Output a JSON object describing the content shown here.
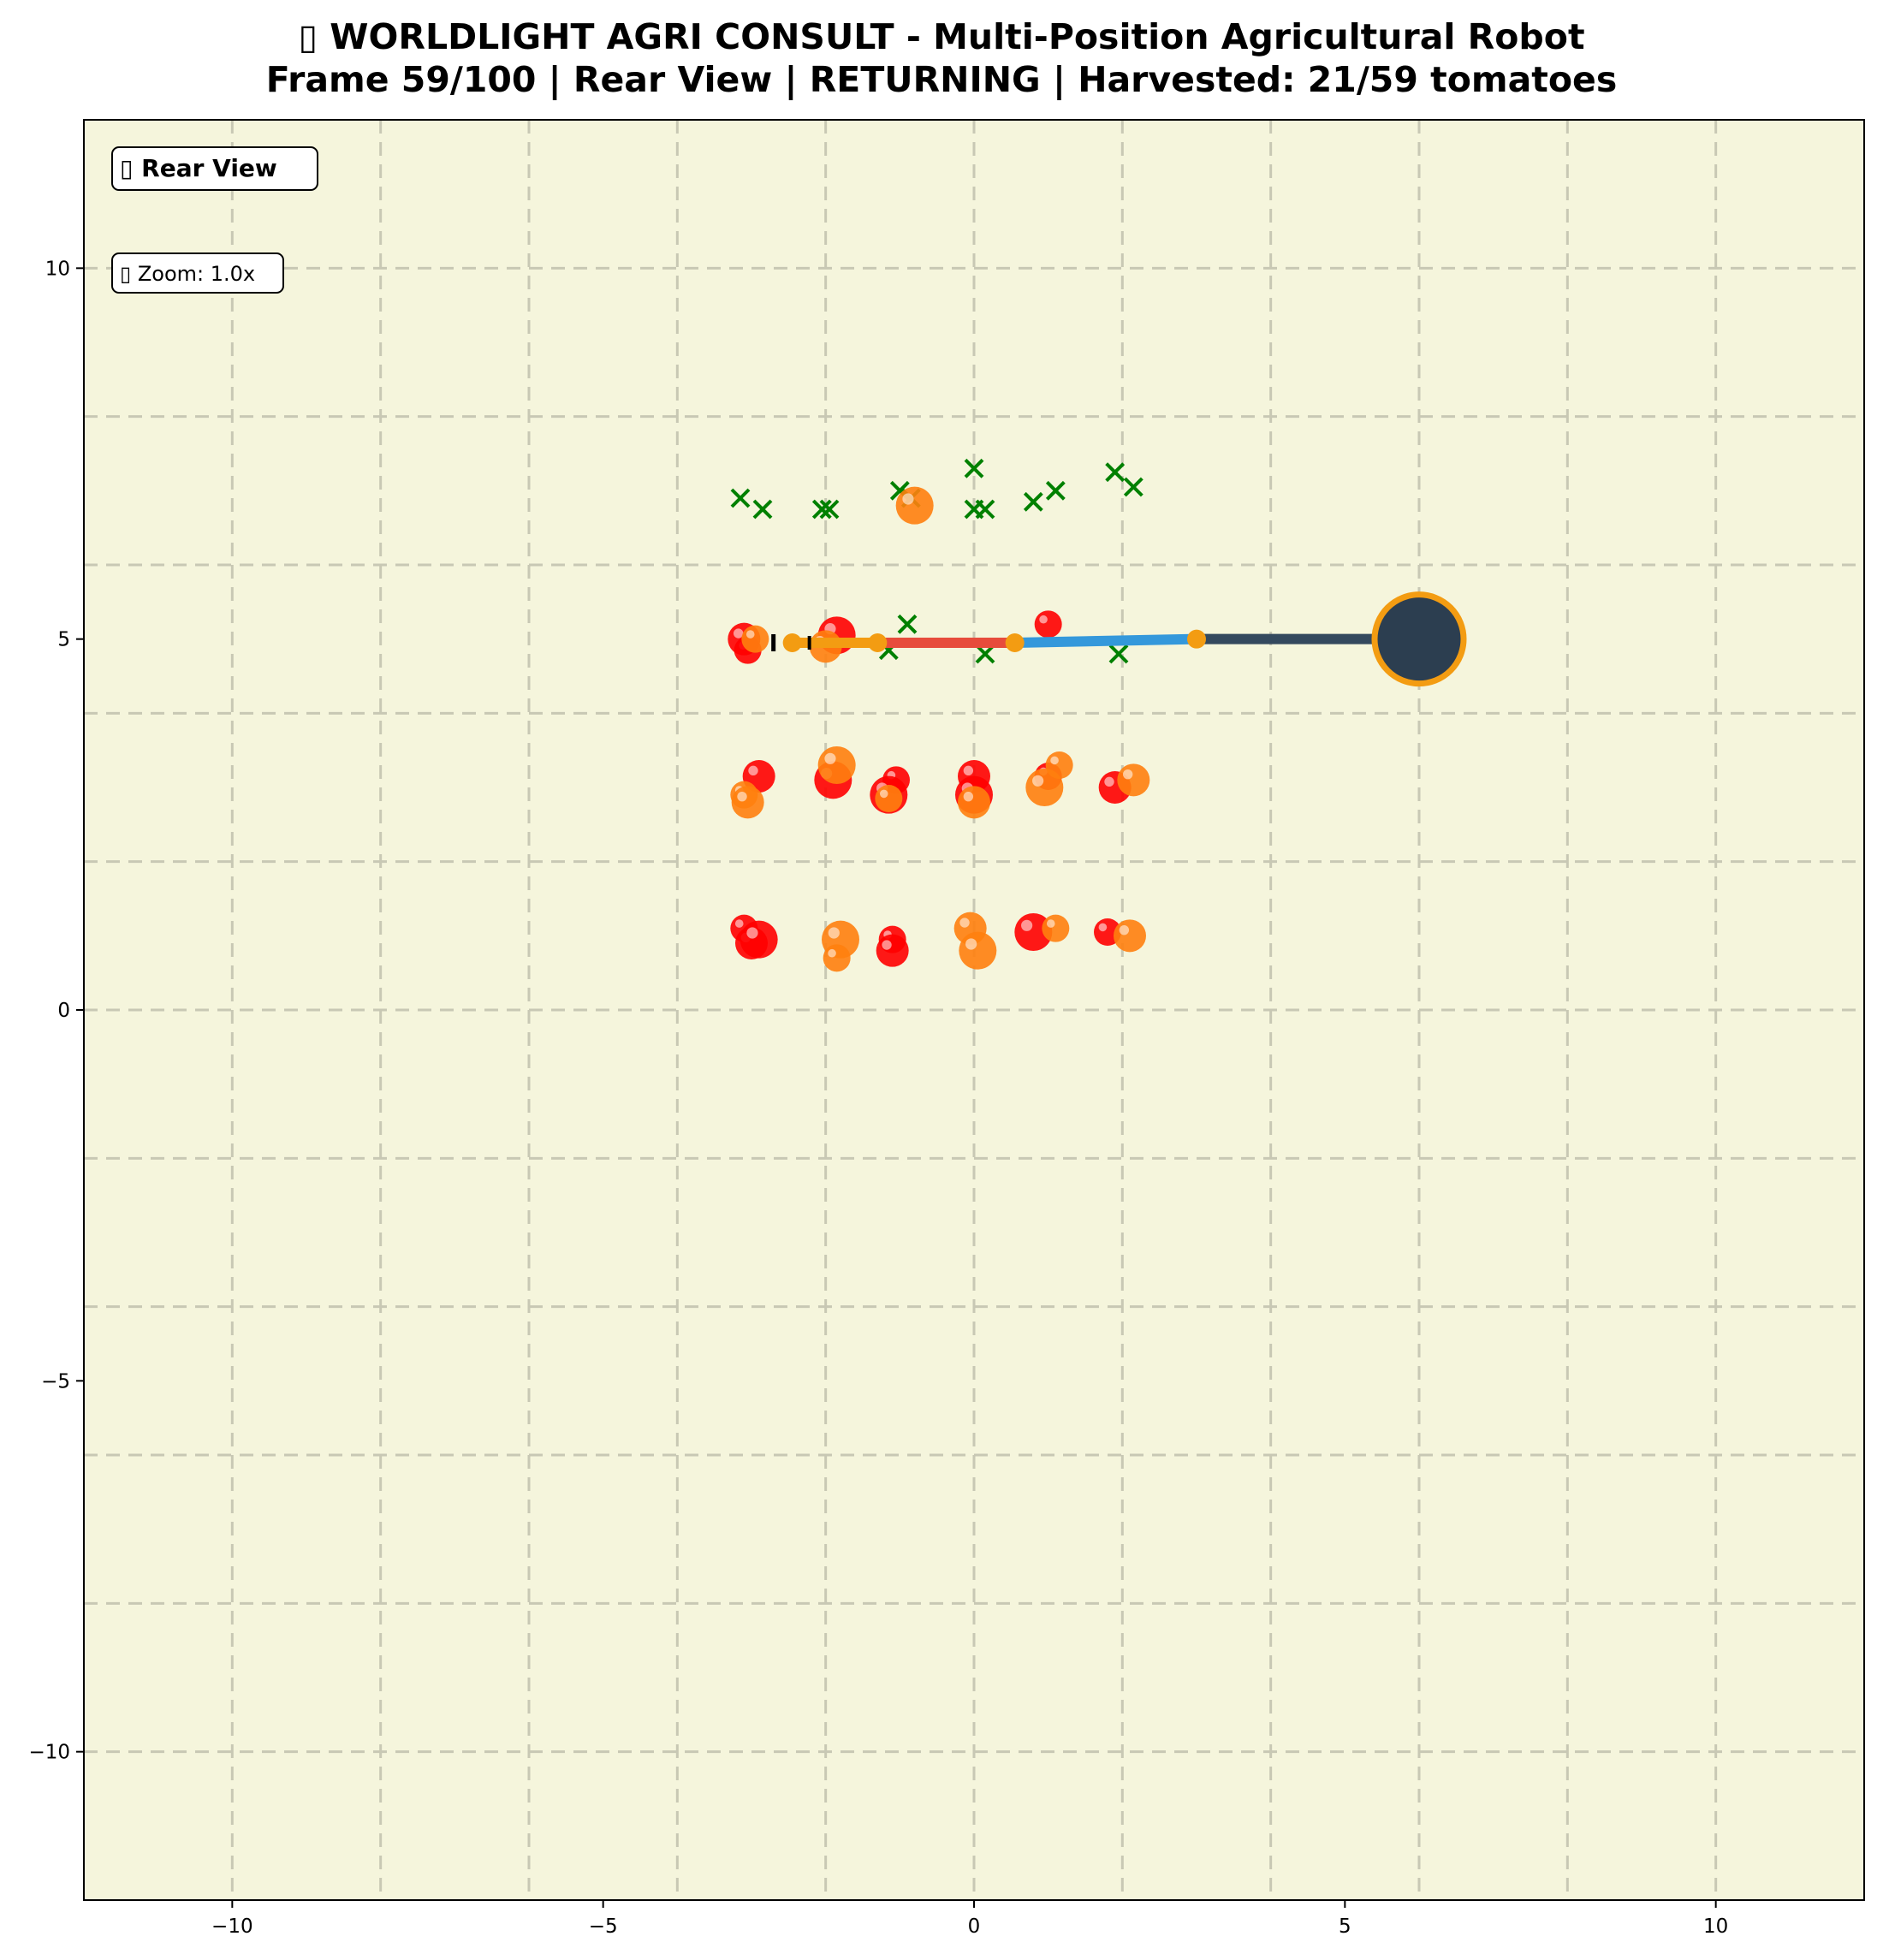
{
  "title": {
    "line1": "▯ WORLDLIGHT AGRI CONSULT - Multi-Position Agricultural Robot",
    "line2": "Frame 59/100 | Rear View | RETURNING | Harvested: 21/59 tomatoes"
  },
  "badges": {
    "view": "▯ Rear View",
    "zoom": "▯ Zoom: 1.0x"
  },
  "colors": {
    "background": "#f5f5dc",
    "grid": "#c8c8b4",
    "ripe": "#ff0000",
    "semi_ripe": "#ff7f0e",
    "harvested_marker": "#008000",
    "robot_body": "#2c3e50",
    "robot_ring": "#f39c12",
    "arm_segments": [
      "#f39c12",
      "#e74c3c",
      "#3498db",
      "#34495e"
    ]
  },
  "chart_data": {
    "type": "scatter",
    "xlim": [
      -12,
      12
    ],
    "ylim": [
      -12,
      12
    ],
    "xticks": [
      -10,
      -5,
      0,
      5,
      10
    ],
    "yticks": [
      -10,
      -5,
      0,
      5,
      10
    ],
    "xtick_labels": [
      "−10",
      "−5",
      "0",
      "5",
      "10"
    ],
    "ytick_labels": [
      "−10",
      "−5",
      "0",
      "5",
      "10"
    ],
    "grid": true,
    "grid_step": 2,
    "tomatoes_ripe": [
      [
        -3.05,
        4.85
      ],
      [
        -3.1,
        5.0
      ],
      [
        -1.85,
        5.05
      ],
      [
        1.0,
        5.2
      ],
      [
        -2.9,
        3.15
      ],
      [
        -1.9,
        3.1
      ],
      [
        -1.05,
        3.1
      ],
      [
        0.0,
        3.15
      ],
      [
        0.0,
        2.9
      ],
      [
        1.0,
        3.15
      ],
      [
        1.9,
        3.0
      ],
      [
        -1.15,
        2.9
      ],
      [
        -3.1,
        1.1
      ],
      [
        -3.0,
        0.9
      ],
      [
        -2.9,
        0.95
      ],
      [
        -1.1,
        0.95
      ],
      [
        -1.1,
        0.8
      ],
      [
        0.8,
        1.05
      ],
      [
        1.8,
        1.05
      ]
    ],
    "tomatoes_semi": [
      [
        -2.95,
        5.0
      ],
      [
        -2.0,
        4.9
      ],
      [
        -0.8,
        6.8
      ],
      [
        -3.1,
        2.9
      ],
      [
        -3.05,
        2.8
      ],
      [
        -1.85,
        3.3
      ],
      [
        -1.15,
        2.85
      ],
      [
        0.0,
        2.8
      ],
      [
        0.95,
        3.0
      ],
      [
        1.15,
        3.3
      ],
      [
        2.15,
        3.1
      ],
      [
        -1.8,
        0.95
      ],
      [
        -1.85,
        0.7
      ],
      [
        -0.05,
        1.1
      ],
      [
        0.05,
        0.8
      ],
      [
        1.1,
        1.1
      ],
      [
        2.1,
        1.0
      ]
    ],
    "harvested": [
      [
        -3.15,
        6.9
      ],
      [
        -2.85,
        6.75
      ],
      [
        -2.05,
        6.75
      ],
      [
        -1.95,
        6.75
      ],
      [
        -1.0,
        7.0
      ],
      [
        -0.85,
        6.9
      ],
      [
        0.0,
        7.3
      ],
      [
        0.0,
        6.75
      ],
      [
        0.15,
        6.75
      ],
      [
        0.8,
        6.85
      ],
      [
        1.1,
        7.0
      ],
      [
        1.9,
        7.25
      ],
      [
        2.15,
        7.05
      ],
      [
        -0.9,
        5.2
      ],
      [
        -1.15,
        4.85
      ],
      [
        0.15,
        4.8
      ],
      [
        1.95,
        4.8
      ]
    ],
    "arm": [
      {
        "from": [
          -2.45,
          4.95
        ],
        "to": [
          -1.3,
          4.95
        ]
      },
      {
        "from": [
          -1.3,
          4.95
        ],
        "to": [
          0.55,
          4.95
        ]
      },
      {
        "from": [
          0.55,
          4.95
        ],
        "to": [
          3.0,
          5.0
        ]
      },
      {
        "from": [
          3.0,
          5.0
        ],
        "to": [
          6.0,
          5.0
        ]
      }
    ],
    "arm_joints": [
      [
        -2.45,
        4.95
      ],
      [
        -1.3,
        4.95
      ],
      [
        0.55,
        4.95
      ],
      [
        3.0,
        5.0
      ]
    ],
    "robot_base": [
      6.0,
      5.0
    ]
  }
}
